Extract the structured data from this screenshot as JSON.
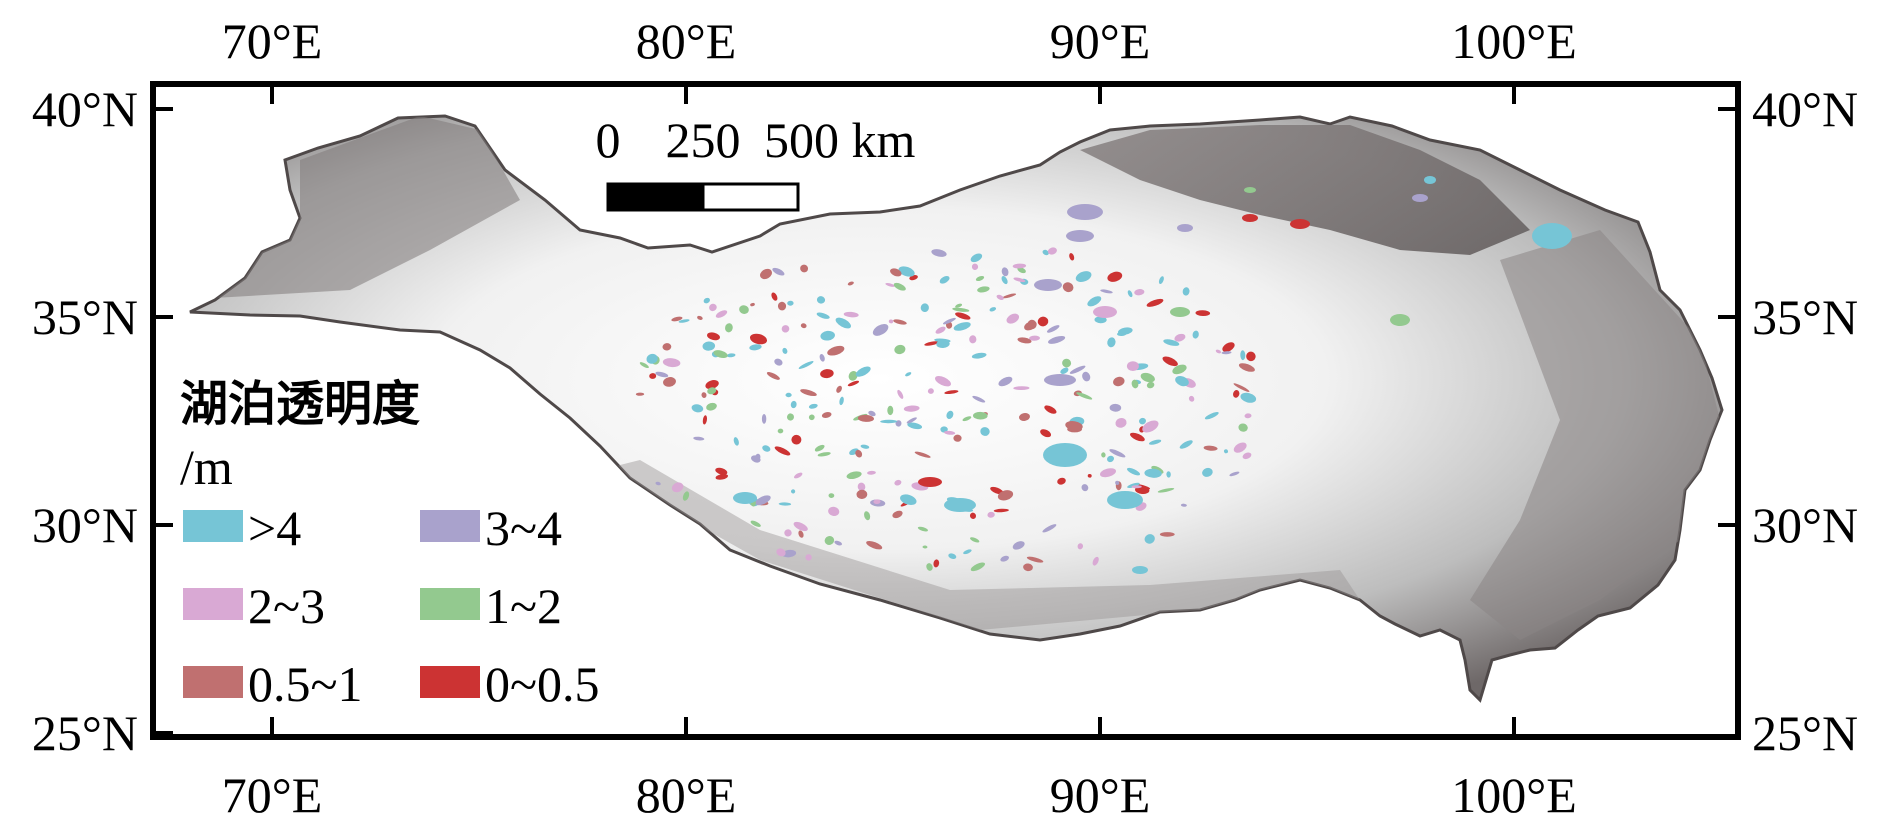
{
  "axes": {
    "top_lon_labels": [
      "70°E",
      "80°E",
      "90°E",
      "100°E"
    ],
    "bottom_lon_labels": [
      "70°E",
      "80°E",
      "90°E",
      "100°E"
    ],
    "left_lat_labels": [
      "40°N",
      "35°N",
      "30°N",
      "25°N"
    ],
    "right_lat_labels": [
      "40°N",
      "35°N",
      "30°N",
      "25°N"
    ]
  },
  "scale_bar": {
    "labels": [
      "0",
      "250",
      "500 km"
    ]
  },
  "legend": {
    "title": "湖泊透明度",
    "unit": "/m",
    "items": [
      {
        "label": ">4",
        "color": "#76c5d6"
      },
      {
        "label": "3~4",
        "color": "#a9a2cc"
      },
      {
        "label": "2~3",
        "color": "#d9a9d4"
      },
      {
        "label": "1~2",
        "color": "#93c98f"
      },
      {
        "label": "0.5~1",
        "color": "#c07070"
      },
      {
        "label": "0~0.5",
        "color": "#cc3333"
      }
    ]
  },
  "colors": {
    "terrain_high": "#ffffff",
    "terrain_low": "#5a5353",
    "frame": "#000000"
  }
}
